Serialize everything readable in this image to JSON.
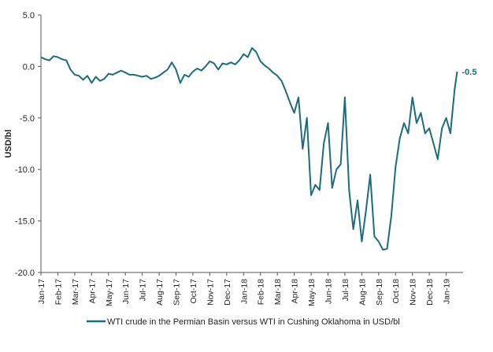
{
  "chart_data": {
    "type": "line",
    "y_label": "USD/bl",
    "end_label": "-0.5",
    "series": [
      {
        "name": "WTI crude in the Permian Basin versus WTI in Cushing Oklahoma in USD/bl",
        "color": "#1d6b7e",
        "x": [
          0,
          0.25,
          0.5,
          0.75,
          1,
          1.25,
          1.5,
          1.75,
          2,
          2.25,
          2.5,
          2.75,
          3,
          3.25,
          3.5,
          3.75,
          4,
          4.25,
          4.5,
          4.75,
          5,
          5.25,
          5.5,
          5.75,
          6,
          6.25,
          6.5,
          6.75,
          7,
          7.25,
          7.5,
          7.75,
          8,
          8.25,
          8.5,
          8.75,
          9,
          9.25,
          9.5,
          9.75,
          10,
          10.25,
          10.5,
          10.75,
          11,
          11.25,
          11.5,
          11.75,
          12,
          12.25,
          12.5,
          12.75,
          13,
          13.25,
          13.5,
          13.75,
          14,
          14.25,
          14.5,
          14.75,
          15,
          15.25,
          15.5,
          15.75,
          16,
          16.25,
          16.5,
          16.75,
          17,
          17.25,
          17.5,
          17.75,
          18,
          18.25,
          18.5,
          18.75,
          19,
          19.25,
          19.5,
          19.75,
          20,
          20.25,
          20.5,
          20.75,
          21,
          21.25,
          21.5,
          21.75,
          22,
          22.25,
          22.5,
          22.75,
          23,
          23.25,
          23.5,
          23.75,
          24,
          24.25,
          24.5,
          24.65
        ],
        "values": [
          0.9,
          0.7,
          0.6,
          1.0,
          0.9,
          0.7,
          0.6,
          -0.3,
          -0.8,
          -0.9,
          -1.3,
          -0.9,
          -1.6,
          -1.0,
          -1.4,
          -1.2,
          -0.7,
          -0.8,
          -0.6,
          -0.4,
          -0.6,
          -0.8,
          -0.8,
          -0.9,
          -1.0,
          -0.9,
          -1.2,
          -1.1,
          -0.9,
          -0.6,
          -0.3,
          0.4,
          -0.3,
          -1.6,
          -0.8,
          -1.0,
          -0.5,
          -0.2,
          -0.4,
          0.0,
          0.5,
          0.3,
          -0.3,
          0.3,
          0.2,
          0.4,
          0.2,
          0.6,
          1.2,
          0.9,
          1.8,
          1.4,
          0.5,
          0.1,
          -0.2,
          -0.6,
          -0.9,
          -1.4,
          -2.4,
          -3.5,
          -4.5,
          -3.0,
          -8.0,
          -5.0,
          -12.5,
          -11.5,
          -12.0,
          -7.5,
          -5.5,
          -11.8,
          -10.0,
          -9.5,
          -3.0,
          -12.0,
          -15.8,
          -13.0,
          -17.0,
          -14.0,
          -10.5,
          -16.5,
          -17.0,
          -17.8,
          -17.7,
          -14.5,
          -9.8,
          -7.0,
          -5.5,
          -6.5,
          -3.0,
          -5.5,
          -4.5,
          -6.5,
          -6.0,
          -7.5,
          -9.0,
          -6.0,
          -5.0,
          -6.5,
          -2.2,
          -0.5
        ]
      }
    ],
    "xlim": [
      0,
      25
    ],
    "xticks": [
      {
        "value": 0,
        "label": "Jan-17"
      },
      {
        "value": 1,
        "label": "Feb-17"
      },
      {
        "value": 2,
        "label": "Mar-17"
      },
      {
        "value": 3,
        "label": "Apr-17"
      },
      {
        "value": 4,
        "label": "May-17"
      },
      {
        "value": 5,
        "label": "Jun-17"
      },
      {
        "value": 6,
        "label": "Jul-17"
      },
      {
        "value": 7,
        "label": "Aug-17"
      },
      {
        "value": 8,
        "label": "Sep-17"
      },
      {
        "value": 9,
        "label": "Oct-17"
      },
      {
        "value": 10,
        "label": "Nov-17"
      },
      {
        "value": 11,
        "label": "Dec-17"
      },
      {
        "value": 12,
        "label": "Jan-18"
      },
      {
        "value": 13,
        "label": "Feb-18"
      },
      {
        "value": 14,
        "label": "Mar-18"
      },
      {
        "value": 15,
        "label": "Apr-18"
      },
      {
        "value": 16,
        "label": "May-18"
      },
      {
        "value": 17,
        "label": "Jun-18"
      },
      {
        "value": 18,
        "label": "Jul-18"
      },
      {
        "value": 19,
        "label": "Aug-18"
      },
      {
        "value": 20,
        "label": "Sep-18"
      },
      {
        "value": 21,
        "label": "Oct-18"
      },
      {
        "value": 22,
        "label": "Nov-18"
      },
      {
        "value": 23,
        "label": "Dec-18"
      },
      {
        "value": 24,
        "label": "Jan-19"
      }
    ],
    "ylim": [
      -20,
      5
    ],
    "yticks": [
      {
        "value": 5,
        "label": "5.0"
      },
      {
        "value": 0,
        "label": "0.0"
      },
      {
        "value": -5,
        "label": "-5.0"
      },
      {
        "value": -10,
        "label": "-10.0"
      },
      {
        "value": -15,
        "label": "-15.0"
      },
      {
        "value": -20,
        "label": "-20.0"
      }
    ],
    "grid": false
  }
}
